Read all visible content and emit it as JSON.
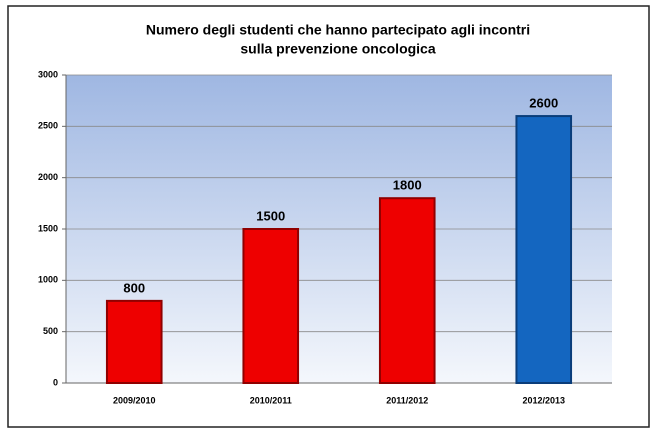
{
  "chart_data": {
    "type": "bar",
    "title": [
      "Numero  degli studenti che hanno partecipato agli incontri",
      "sulla prevenzione oncologica"
    ],
    "categories": [
      "2009/2010",
      "2010/2011",
      "2011/2012",
      "2012/2013"
    ],
    "values": [
      800,
      1500,
      1800,
      2600
    ],
    "colors": [
      "#ee0000",
      "#ee0000",
      "#ee0000",
      "#1466c0"
    ],
    "ylim": [
      0,
      3000
    ],
    "yticks": [
      0,
      500,
      1000,
      1500,
      2000,
      2500,
      3000
    ],
    "grid": true
  }
}
